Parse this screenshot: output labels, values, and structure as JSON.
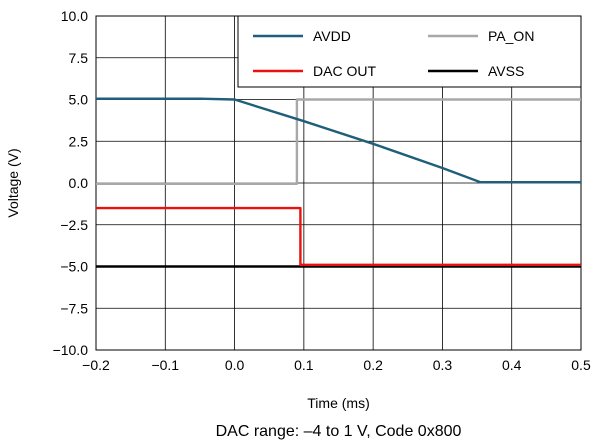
{
  "chart_data": {
    "type": "line",
    "xlabel": "Time (ms)",
    "ylabel": "Voltage (V)",
    "xlim": [
      -0.2,
      0.5
    ],
    "ylim": [
      -10,
      10
    ],
    "x_ticks": [
      -0.2,
      -0.1,
      0.0,
      0.1,
      0.2,
      0.3,
      0.4,
      0.5
    ],
    "x_tick_labels": [
      "−0.2",
      "−0.1",
      "0.0",
      "0.1",
      "0.2",
      "0.3",
      "0.4",
      "0.5"
    ],
    "y_ticks": [
      10,
      7.5,
      5,
      2.5,
      0,
      -2.5,
      -5,
      -7.5,
      -10
    ],
    "y_tick_labels": [
      "10.0",
      "7.5",
      "5.0",
      "2.5",
      "0.0",
      "−2.5",
      "−5.0",
      "−7.5",
      "−10.0"
    ],
    "grid": true,
    "legend_position": "top-right",
    "caption": "DAC range: –4 to 1 V, Code 0x800",
    "series": [
      {
        "name": "AVDD",
        "color": "#1f5f7a",
        "x": [
          -0.2,
          -0.05,
          0.0,
          0.1,
          0.2,
          0.3,
          0.355,
          0.5
        ],
        "y": [
          5.05,
          5.05,
          5.0,
          3.7,
          2.35,
          0.9,
          0.05,
          0.05
        ]
      },
      {
        "name": "PA_ON",
        "color": "#a8a8a8",
        "x": [
          -0.2,
          0.09,
          0.09,
          0.5
        ],
        "y": [
          -0.05,
          -0.05,
          5.0,
          5.0
        ]
      },
      {
        "name": "DAC OUT",
        "color": "#e8130f",
        "x": [
          -0.2,
          0.095,
          0.095,
          0.5
        ],
        "y": [
          -1.5,
          -1.5,
          -4.9,
          -4.9
        ]
      },
      {
        "name": "AVSS",
        "color": "#000000",
        "x": [
          -0.2,
          0.5
        ],
        "y": [
          -5.0,
          -5.0
        ]
      }
    ]
  }
}
